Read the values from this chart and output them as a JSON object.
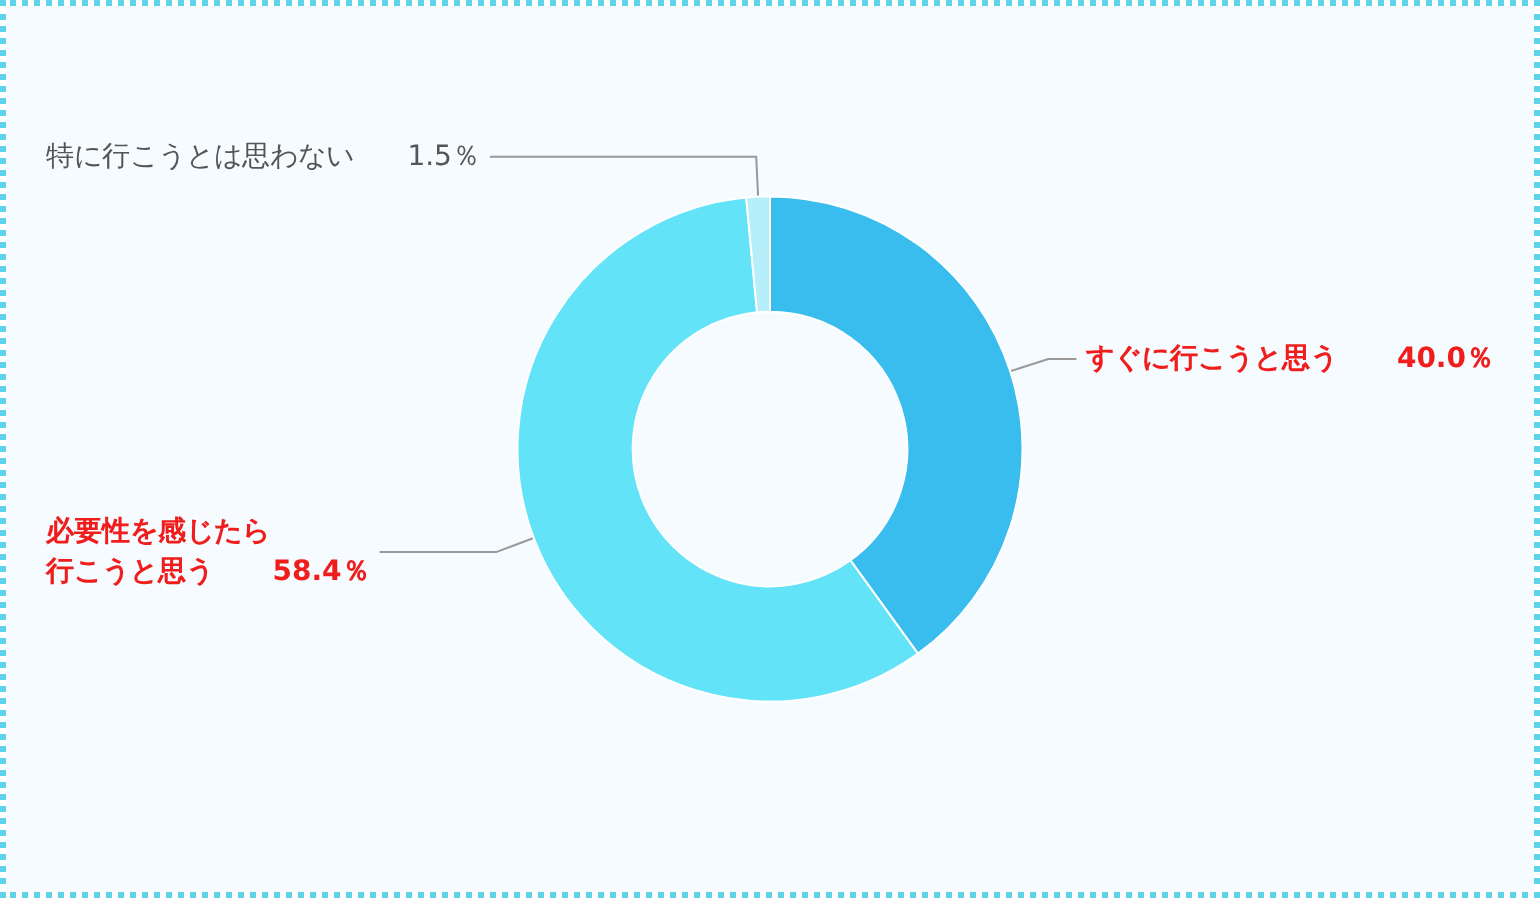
{
  "chart_data": {
    "type": "donut",
    "categories": [
      "すぐに行こうと思う",
      "必要性を感じたら行こうと思う",
      "特に行こうとは思わない"
    ],
    "values": [
      40.0,
      58.4,
      1.5
    ],
    "value_labels": [
      "40.0％",
      "58.4％",
      "1.5％"
    ],
    "colors": [
      "#38bdee",
      "#62e3f8",
      "#b6eefa"
    ],
    "legend": false
  }
}
